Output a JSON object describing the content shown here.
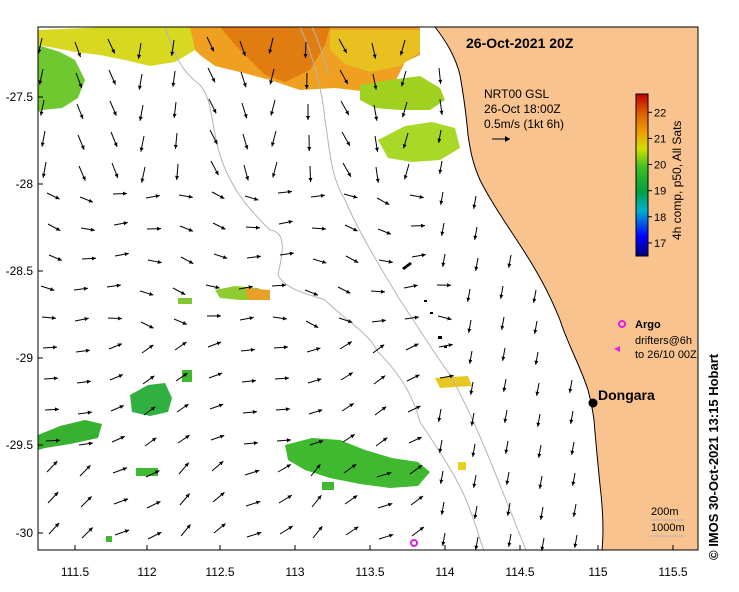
{
  "map": {
    "title": "26-Oct-2021 20Z",
    "current_source": {
      "line1": "NRT00 GSL",
      "line2": "26-Oct 18:00Z",
      "scale_label": "0.5m/s (1kt 6h)"
    },
    "colorbar": {
      "label": "4h comp, p50, All Sats",
      "ticks": [
        "17",
        "18",
        "19",
        "20",
        "21",
        "22"
      ],
      "range": [
        16.5,
        22.7
      ]
    },
    "legend": {
      "argo_label": "Argo",
      "drifters_label_line1": "drifters@6h",
      "drifters_label_line2": "to 26/10 00Z"
    },
    "place": {
      "name": "Dongara"
    },
    "isobaths": {
      "label_200": "200m",
      "label_1000": "1000m"
    },
    "credit": "© IMOS 30-Oct-2021 13:15 Hobart",
    "x_ticks": [
      "111.5",
      "112",
      "112.5",
      "113",
      "113.5",
      "114",
      "114.5",
      "115",
      "115.5"
    ],
    "y_ticks": [
      "-27.5",
      "-28",
      "-28.5",
      "-29",
      "-29.5",
      "-30"
    ],
    "colors": {
      "land": "#f9c38f",
      "coast": "#000000",
      "isobath": "#b4b4b4",
      "argo": "#e020e0",
      "arrow": "#000000"
    }
  }
}
